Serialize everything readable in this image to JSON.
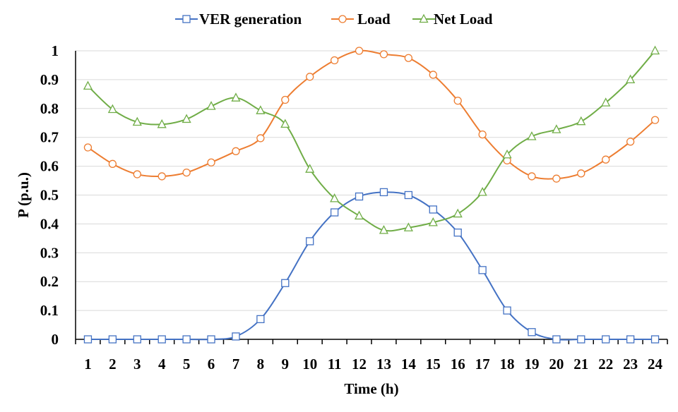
{
  "chart_data": {
    "type": "line",
    "title": "",
    "xlabel": "Time (h)",
    "ylabel": "P (p.u.)",
    "ylim": [
      0,
      1
    ],
    "yticks": [
      "0",
      "0.1",
      "0.2",
      "0.3",
      "0.4",
      "0.5",
      "0.6",
      "0.7",
      "0.8",
      "0.9",
      "1"
    ],
    "x": [
      1,
      2,
      3,
      4,
      5,
      6,
      7,
      8,
      9,
      10,
      11,
      12,
      13,
      14,
      15,
      16,
      17,
      18,
      19,
      20,
      21,
      22,
      23,
      24
    ],
    "x_tick_labels": [
      "1",
      "2",
      "3",
      "4",
      "5",
      "6",
      "7",
      "8",
      "9",
      "10",
      "11",
      "12",
      "13",
      "14",
      "15",
      "16",
      "17",
      "18",
      "19",
      "20",
      "21",
      "22",
      "23",
      "24"
    ],
    "grid": "horizontal",
    "legend_position": "top",
    "series": [
      {
        "name": "VER generation",
        "color": "#4472c4",
        "marker": "square",
        "values": [
          0,
          0,
          0,
          0,
          0,
          0,
          0.01,
          0.07,
          0.195,
          0.34,
          0.44,
          0.495,
          0.51,
          0.5,
          0.45,
          0.37,
          0.24,
          0.1,
          0.025,
          0,
          0,
          0,
          0,
          0
        ]
      },
      {
        "name": "Load",
        "color": "#ed7d31",
        "marker": "circle",
        "values": [
          0.665,
          0.608,
          0.572,
          0.565,
          0.578,
          0.613,
          0.652,
          0.697,
          0.83,
          0.91,
          0.967,
          1.0,
          0.988,
          0.975,
          0.917,
          0.827,
          0.71,
          0.62,
          0.565,
          0.557,
          0.575,
          0.623,
          0.685,
          0.76
        ]
      },
      {
        "name": "Net Load",
        "color": "#70ad47",
        "marker": "triangle",
        "values": [
          0.878,
          0.797,
          0.753,
          0.745,
          0.763,
          0.808,
          0.837,
          0.793,
          0.746,
          0.59,
          0.488,
          0.428,
          0.378,
          0.387,
          0.405,
          0.435,
          0.51,
          0.64,
          0.703,
          0.727,
          0.755,
          0.82,
          0.9,
          1.0
        ]
      }
    ]
  }
}
